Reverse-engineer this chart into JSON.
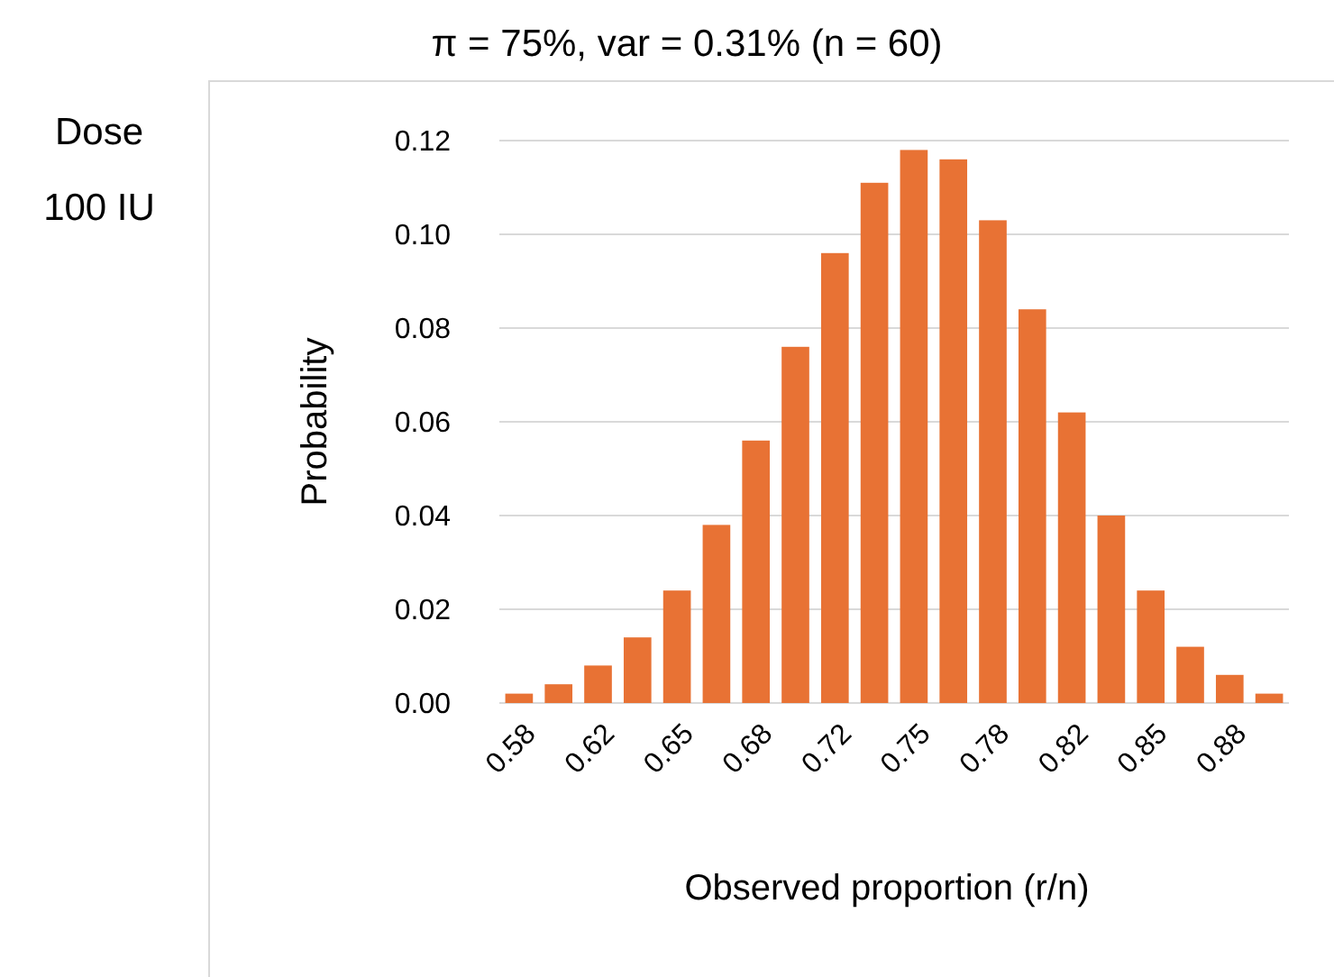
{
  "chart_data": {
    "type": "bar",
    "title": "π = 75%, var = 0.31% (n = 60)",
    "xlabel": "Observed proportion (r/n)",
    "ylabel": "Probability",
    "annotations": [
      "Dose",
      "100 IU"
    ],
    "categories": [
      "0.58",
      null,
      "0.62",
      null,
      "0.65",
      null,
      "0.68",
      null,
      "0.72",
      null,
      "0.75",
      null,
      "0.78",
      null,
      "0.82",
      null,
      "0.85",
      null,
      "0.88",
      null
    ],
    "values": [
      0.002,
      0.004,
      0.008,
      0.014,
      0.024,
      0.038,
      0.056,
      0.076,
      0.096,
      0.111,
      0.118,
      0.116,
      0.103,
      0.084,
      0.062,
      0.04,
      0.024,
      0.012,
      0.006,
      0.002
    ],
    "color": "#e87234",
    "ylim": [
      0,
      0.12
    ],
    "yticks": [
      {
        "value": 0,
        "label": "0.00"
      },
      {
        "value": 0.02,
        "label": "0.02"
      },
      {
        "value": 0.04,
        "label": "0.04"
      },
      {
        "value": 0.06,
        "label": "0.06"
      },
      {
        "value": 0.08,
        "label": "0.08"
      },
      {
        "value": 0.1,
        "label": "0.10"
      },
      {
        "value": 0.12,
        "label": "0.12"
      }
    ],
    "grid": "y"
  }
}
